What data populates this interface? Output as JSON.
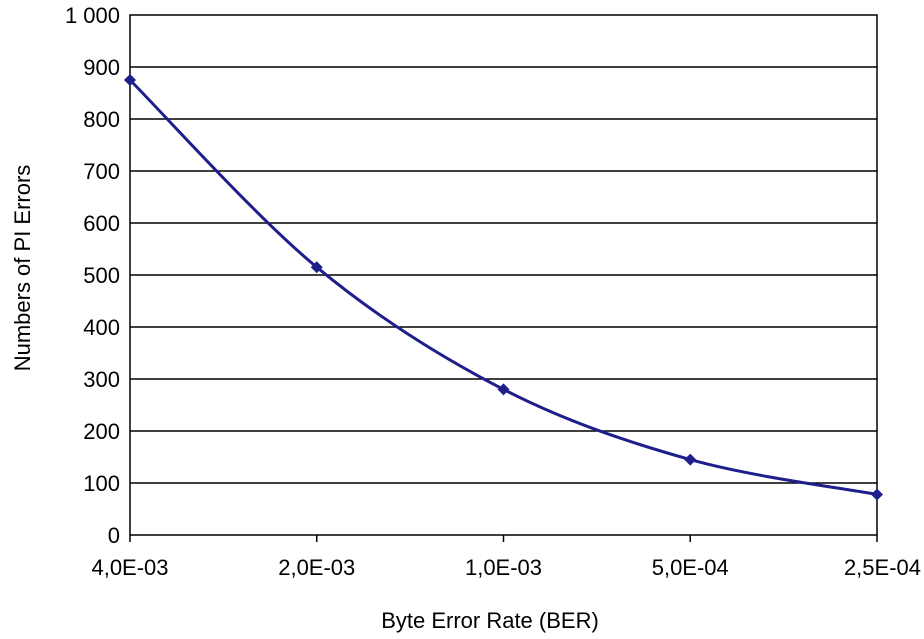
{
  "chart_data": {
    "type": "line",
    "xlabel": "Byte Error Rate (BER)",
    "ylabel": "Numbers of PI Errors",
    "x_tick_labels": [
      "4,0E-03",
      "2,0E-03",
      "1,0E-03",
      "5,0E-04",
      "2,5E-04"
    ],
    "y_tick_labels": [
      "0",
      "100",
      "200",
      "300",
      "400",
      "500",
      "600",
      "700",
      "800",
      "900",
      "1 000"
    ],
    "ylim": [
      0,
      1000
    ],
    "y_tick_step": 100,
    "x_scale": "log2",
    "grid": "horizontal",
    "legend": "none",
    "series": [
      {
        "color": "#1f1f8c",
        "points": [
          {
            "ber": 0.004,
            "y": 875
          },
          {
            "ber": 0.002,
            "y": 515
          },
          {
            "ber": 0.001,
            "y": 280
          },
          {
            "ber": 0.0005,
            "y": 145
          },
          {
            "ber": 0.00025,
            "y": 78
          }
        ]
      }
    ]
  }
}
